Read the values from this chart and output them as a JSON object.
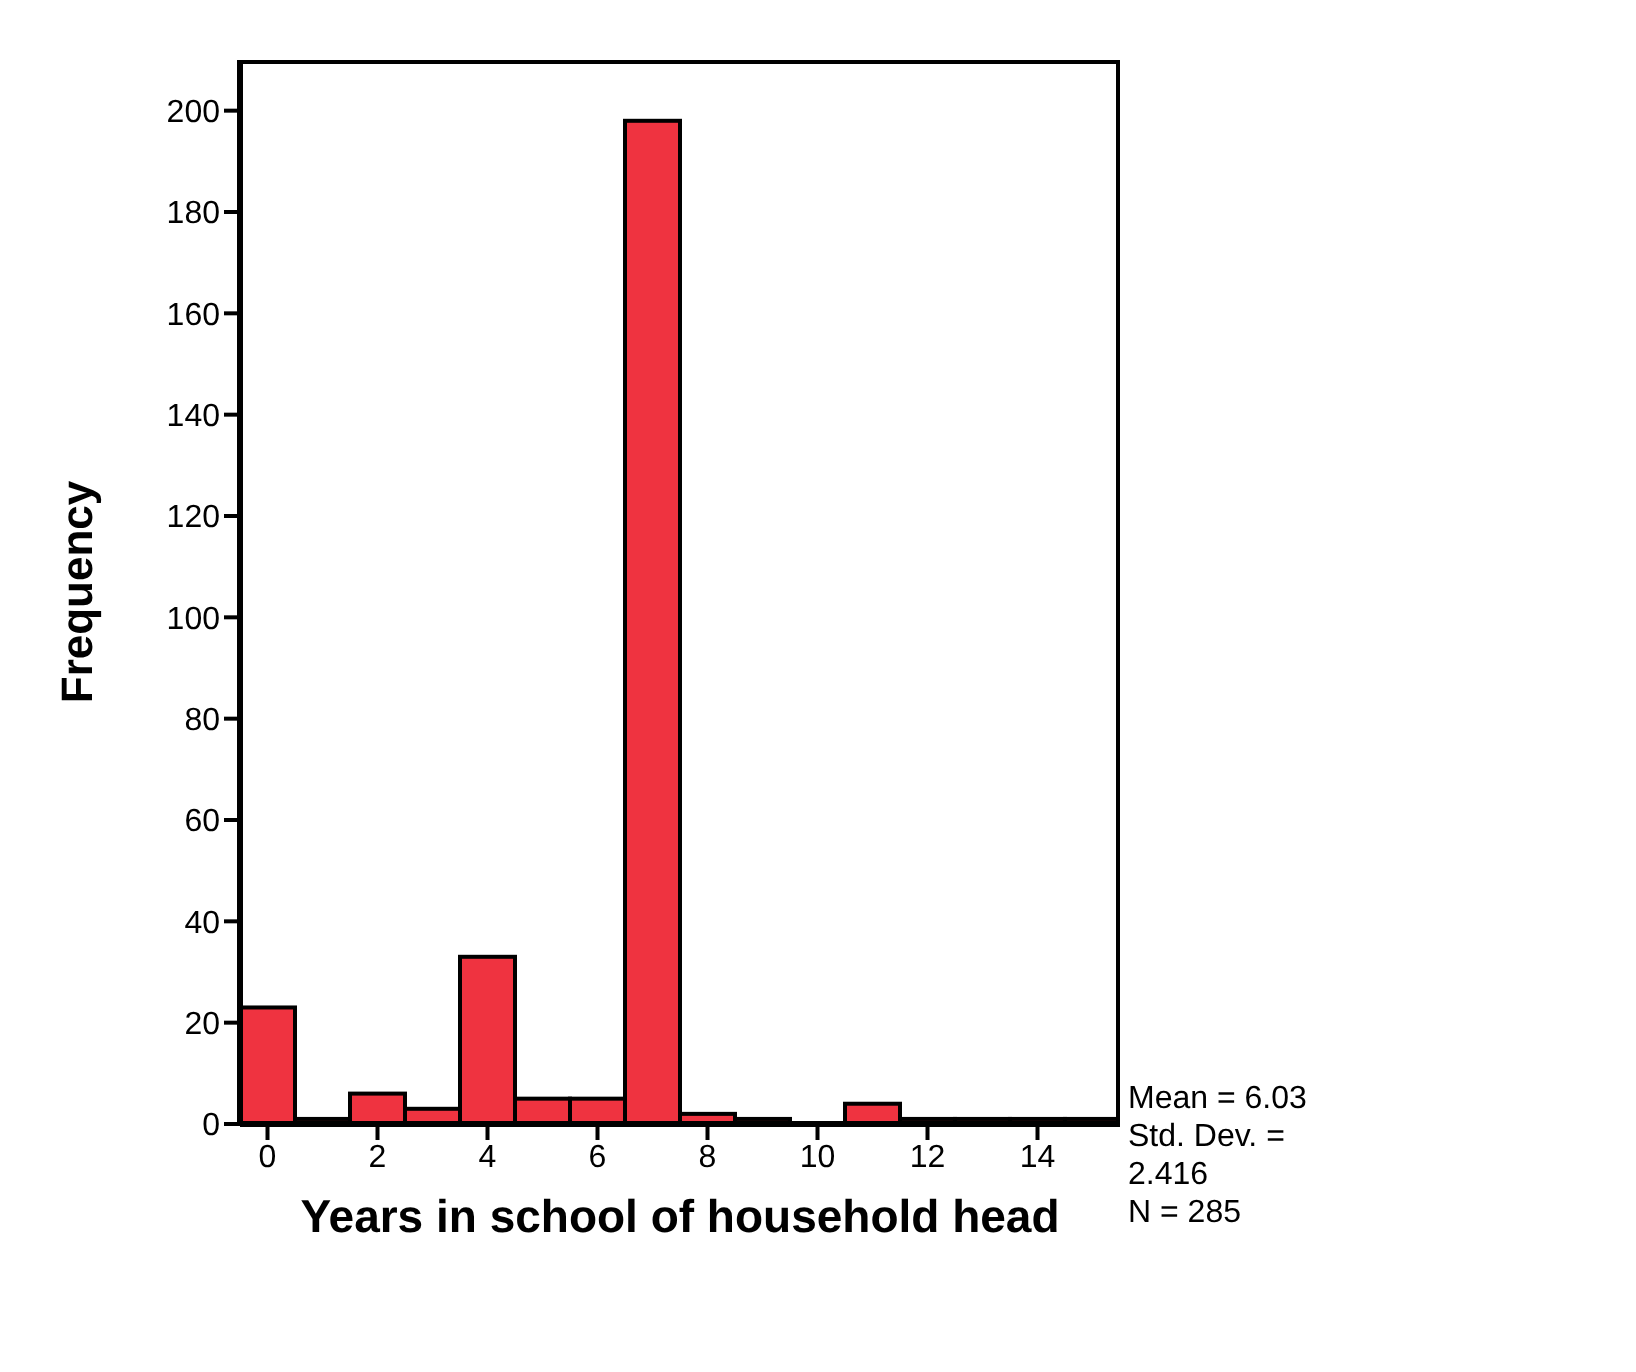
{
  "chart_data": {
    "type": "histogram",
    "xlabel": "Years in school of household head",
    "ylabel": "Frequency",
    "bins": [
      -0.5,
      0.5,
      1.5,
      2.5,
      3.5,
      4.5,
      5.5,
      6.5,
      7.5,
      8.5,
      9.5,
      10.5,
      11.5,
      12.5,
      13.5,
      14.5,
      15.5
    ],
    "values": [
      23,
      1,
      6,
      3,
      33,
      5,
      5,
      198,
      2,
      1,
      0,
      4,
      1,
      1,
      1,
      1
    ],
    "color": "#ef3340",
    "xlim": [
      -0.5,
      15.5
    ],
    "xticks": [
      0,
      2,
      4,
      6,
      8,
      10,
      12,
      14
    ],
    "ylim": [
      0,
      210
    ],
    "yticks": [
      0,
      20,
      40,
      60,
      80,
      100,
      120,
      140,
      160,
      180,
      200
    ],
    "annotations": [
      "Mean = 6.03",
      "Std. Dev. = 2.416",
      "N = 285"
    ]
  }
}
